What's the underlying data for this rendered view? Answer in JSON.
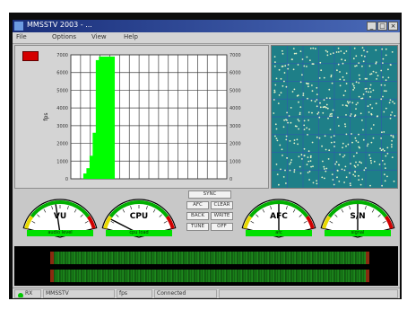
{
  "window": {
    "title": "MMSSTV 2003 - ...",
    "buttons": {
      "minimize": "_",
      "maximize": "□",
      "close": "×"
    }
  },
  "menu": {
    "items": [
      "File",
      "Options",
      "View",
      "Help"
    ]
  },
  "spectrum": {
    "color_bar": "#00ff00",
    "indicator_color": "#d40000",
    "chart_data": {
      "type": "bar",
      "ylabel": "fps",
      "ylim": [
        0,
        7000
      ],
      "yticks": [
        "7000",
        "6000",
        "5000",
        "4000",
        "3000",
        "2000",
        "1000",
        "0"
      ],
      "values": [
        0,
        0,
        0,
        0,
        300,
        600,
        1300,
        2600,
        6700,
        6900,
        6900,
        6900,
        6900,
        6900,
        0,
        0,
        0,
        0,
        0,
        0,
        0,
        0,
        0,
        0,
        0,
        0,
        0,
        0,
        0,
        0,
        0,
        0,
        0,
        0,
        0,
        0,
        0,
        0,
        0,
        0,
        0,
        0,
        0,
        0,
        0,
        0,
        0,
        0,
        0,
        0
      ]
    }
  },
  "scatter": {
    "background": "#1e7f88",
    "point_color": "#eaf4c8"
  },
  "meters": [
    {
      "label": "VU",
      "needle": 0.45,
      "band": "audio level"
    },
    {
      "label": "CPU",
      "needle": 0.12,
      "band": "cpu load"
    },
    {
      "label": "AFC",
      "needle": 0.5,
      "band": "afc"
    },
    {
      "label": "S/N",
      "needle": 0.5,
      "band": "signal"
    }
  ],
  "controls": {
    "top": "SYNC",
    "row1": [
      "AFC",
      "CLEAR"
    ],
    "row2": [
      "BACK",
      "WRITE"
    ],
    "row3": [
      "TUNE",
      "OFF"
    ]
  },
  "status": {
    "rx": "RX",
    "mode": "MMSSTV",
    "fps": "fps",
    "info": "Connected"
  }
}
